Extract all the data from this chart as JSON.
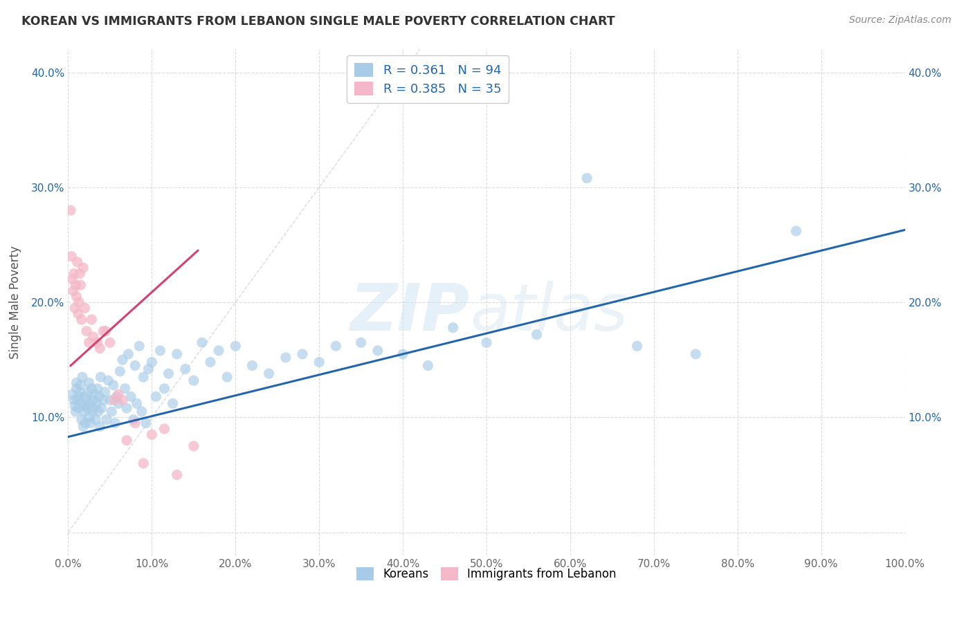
{
  "title": "KOREAN VS IMMIGRANTS FROM LEBANON SINGLE MALE POVERTY CORRELATION CHART",
  "source": "Source: ZipAtlas.com",
  "ylabel": "Single Male Poverty",
  "watermark": "ZIPatlas",
  "legend_label1": "Koreans",
  "legend_label2": "Immigrants from Lebanon",
  "r1": 0.361,
  "n1": 94,
  "r2": 0.385,
  "n2": 35,
  "color1": "#a8cce8",
  "color2": "#f4b8c8",
  "trendline1_color": "#2166ac",
  "trendline2_color": "#d44070",
  "diagonal_color": "#cccccc",
  "background_color": "#ffffff",
  "grid_color": "#cccccc",
  "xlim": [
    0,
    1.0
  ],
  "ylim": [
    -0.02,
    0.42
  ],
  "xticks": [
    0.0,
    0.1,
    0.2,
    0.3,
    0.4,
    0.5,
    0.6,
    0.7,
    0.8,
    0.9,
    1.0
  ],
  "yticks": [
    0.0,
    0.1,
    0.2,
    0.3,
    0.4
  ],
  "xtick_labels": [
    "0.0%",
    "10.0%",
    "20.0%",
    "30.0%",
    "40.0%",
    "50.0%",
    "60.0%",
    "70.0%",
    "80.0%",
    "90.0%",
    "100.0%"
  ],
  "ytick_labels": [
    "",
    "10.0%",
    "20.0%",
    "30.0%",
    "40.0%"
  ],
  "korean_x": [
    0.005,
    0.007,
    0.008,
    0.009,
    0.01,
    0.01,
    0.011,
    0.012,
    0.013,
    0.014,
    0.015,
    0.015,
    0.016,
    0.017,
    0.018,
    0.019,
    0.02,
    0.02,
    0.021,
    0.022,
    0.023,
    0.024,
    0.025,
    0.025,
    0.026,
    0.027,
    0.028,
    0.029,
    0.03,
    0.03,
    0.032,
    0.033,
    0.034,
    0.035,
    0.036,
    0.037,
    0.038,
    0.039,
    0.04,
    0.042,
    0.044,
    0.046,
    0.048,
    0.05,
    0.052,
    0.054,
    0.056,
    0.058,
    0.06,
    0.062,
    0.065,
    0.068,
    0.07,
    0.072,
    0.075,
    0.078,
    0.08,
    0.082,
    0.085,
    0.088,
    0.09,
    0.093,
    0.096,
    0.1,
    0.105,
    0.11,
    0.115,
    0.12,
    0.125,
    0.13,
    0.14,
    0.15,
    0.16,
    0.17,
    0.18,
    0.19,
    0.2,
    0.22,
    0.24,
    0.26,
    0.28,
    0.3,
    0.32,
    0.35,
    0.37,
    0.4,
    0.43,
    0.46,
    0.5,
    0.56,
    0.62,
    0.68,
    0.75,
    0.87
  ],
  "korean_y": [
    0.12,
    0.115,
    0.11,
    0.105,
    0.125,
    0.13,
    0.115,
    0.108,
    0.118,
    0.122,
    0.112,
    0.128,
    0.098,
    0.135,
    0.092,
    0.105,
    0.11,
    0.118,
    0.095,
    0.115,
    0.108,
    0.122,
    0.1,
    0.13,
    0.112,
    0.095,
    0.125,
    0.105,
    0.115,
    0.108,
    0.12,
    0.098,
    0.112,
    0.125,
    0.105,
    0.118,
    0.092,
    0.135,
    0.108,
    0.115,
    0.122,
    0.098,
    0.132,
    0.115,
    0.105,
    0.128,
    0.095,
    0.118,
    0.112,
    0.14,
    0.15,
    0.125,
    0.108,
    0.155,
    0.118,
    0.098,
    0.145,
    0.112,
    0.162,
    0.105,
    0.135,
    0.095,
    0.142,
    0.148,
    0.118,
    0.158,
    0.125,
    0.138,
    0.112,
    0.155,
    0.142,
    0.132,
    0.165,
    0.148,
    0.158,
    0.135,
    0.162,
    0.145,
    0.138,
    0.152,
    0.155,
    0.148,
    0.162,
    0.165,
    0.158,
    0.155,
    0.145,
    0.178,
    0.165,
    0.172,
    0.308,
    0.162,
    0.155,
    0.262
  ],
  "lebanon_x": [
    0.003,
    0.004,
    0.005,
    0.006,
    0.007,
    0.008,
    0.009,
    0.01,
    0.011,
    0.012,
    0.013,
    0.014,
    0.015,
    0.016,
    0.018,
    0.02,
    0.022,
    0.025,
    0.028,
    0.03,
    0.035,
    0.038,
    0.042,
    0.045,
    0.05,
    0.055,
    0.06,
    0.065,
    0.07,
    0.08,
    0.09,
    0.1,
    0.115,
    0.13,
    0.15
  ],
  "lebanon_y": [
    0.28,
    0.24,
    0.22,
    0.21,
    0.225,
    0.195,
    0.215,
    0.205,
    0.235,
    0.19,
    0.2,
    0.225,
    0.215,
    0.185,
    0.23,
    0.195,
    0.175,
    0.165,
    0.185,
    0.17,
    0.165,
    0.16,
    0.175,
    0.175,
    0.165,
    0.115,
    0.12,
    0.115,
    0.08,
    0.095,
    0.06,
    0.085,
    0.09,
    0.05,
    0.075
  ],
  "trendline1_x": [
    0.0,
    1.0
  ],
  "trendline1_y": [
    0.083,
    0.263
  ],
  "trendline2_x": [
    0.003,
    0.155
  ],
  "trendline2_y": [
    0.145,
    0.245
  ]
}
